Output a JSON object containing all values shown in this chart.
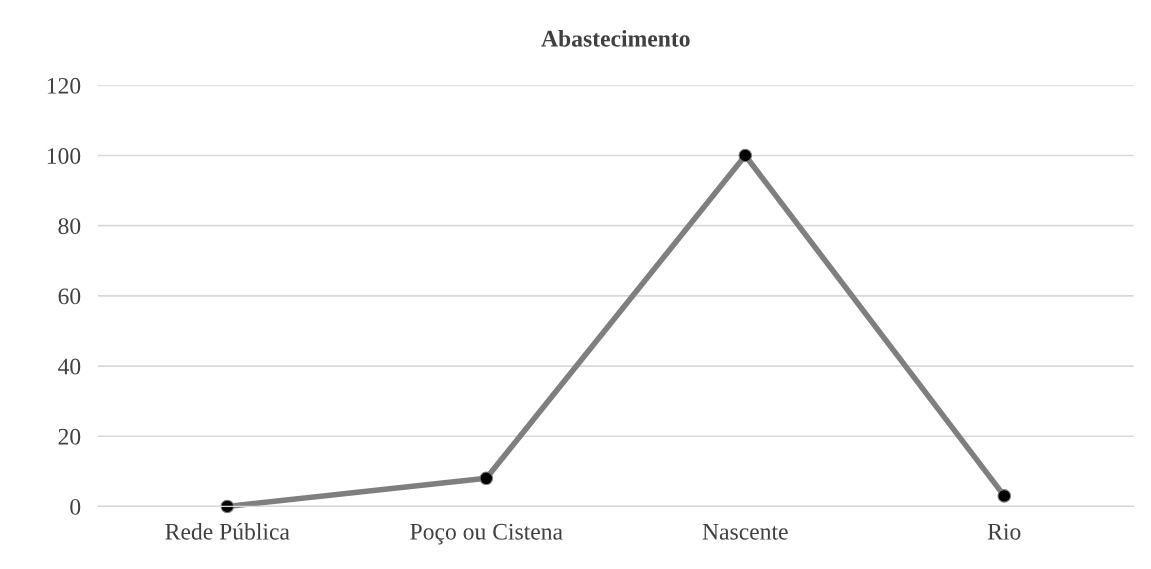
{
  "chart_data": {
    "type": "line",
    "title": "Abastecimento",
    "categories": [
      "Rede Pública",
      "Poço ou Cistena",
      "Nascente",
      "Rio"
    ],
    "series": [
      {
        "color": "#7f7f7f",
        "values": [
          0,
          8,
          100,
          3
        ]
      }
    ],
    "ylim": [
      0,
      120
    ],
    "yticks": [
      0,
      20,
      40,
      60,
      80,
      100,
      120
    ],
    "grid": "y",
    "marker": "circle",
    "line_style": "solid"
  }
}
